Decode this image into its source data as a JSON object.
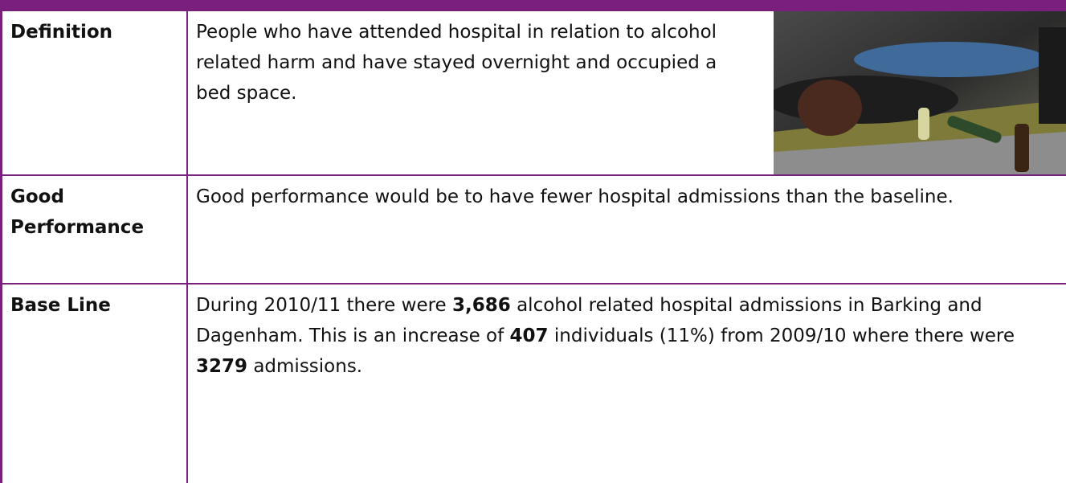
{
  "table": {
    "rows": [
      {
        "label": "Definition",
        "runs": [
          {
            "text": "People who have attended hospital in relation to alcohol related harm and have stayed overnight and occupied a bed space.",
            "bold": false
          }
        ]
      },
      {
        "label": "Good Performance",
        "runs": [
          {
            "text": "Good performance would be to have fewer hospital admissions than the baseline.",
            "bold": false
          }
        ]
      },
      {
        "label": "Base Line",
        "runs": [
          {
            "text": "During 2010/11 there were ",
            "bold": false
          },
          {
            "text": "3,686",
            "bold": true
          },
          {
            "text": " alcohol related hospital admissions in Barking and Dagenham. This is an increase of ",
            "bold": false
          },
          {
            "text": "407",
            "bold": true
          },
          {
            "text": " individuals (11%) from 2009/10 where there were ",
            "bold": false
          },
          {
            "text": "3279",
            "bold": true
          },
          {
            "text": " admissions.",
            "bold": false
          }
        ]
      }
    ]
  }
}
